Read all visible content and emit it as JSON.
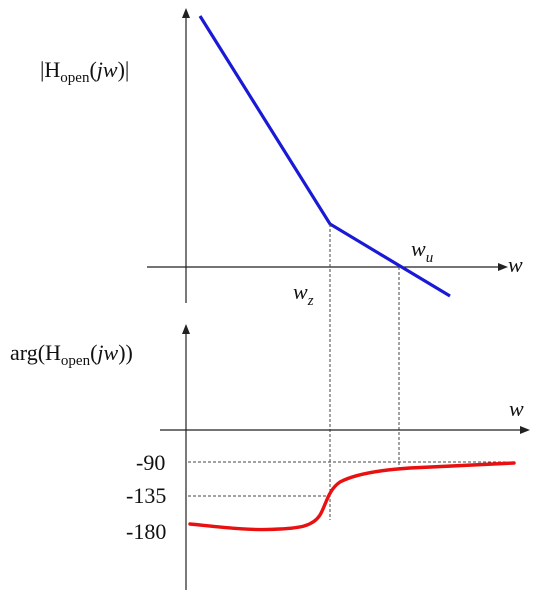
{
  "magnitude_plot": {
    "ylabel": {
      "prefix": "|H",
      "sub": "open",
      "open": "(",
      "var": "jw",
      "close": ")|"
    },
    "xlabel": "w",
    "wz_label": {
      "base": "w",
      "sub": "z"
    },
    "wu_label": {
      "base": "w",
      "sub": "u"
    }
  },
  "phase_plot": {
    "ylabel": {
      "prefix": "arg(H",
      "sub": "open",
      "open": "(",
      "var": "jw",
      "close": "))"
    },
    "xlabel": "w",
    "ticks": [
      "-90",
      "-135",
      "-180"
    ]
  },
  "colors": {
    "magnitude": "#1a1ad6",
    "phase": "#e81010",
    "axis": "#222222",
    "guide": "#444444"
  },
  "chart_data": [
    {
      "type": "line",
      "title": "",
      "xlabel": "w",
      "ylabel": "|Hopen(jw)|",
      "series": [
        {
          "points": [
            [
              -1.0,
              4.2
            ],
            [
              2.0,
              0.65
            ],
            [
              4.0,
              -0.5
            ]
          ]
        }
      ]
    },
    {
      "type": "line",
      "title": "",
      "xlabel": "w",
      "ylabel": "arg(Hopen(jw))",
      "yticks": [
        -90,
        -135,
        -180
      ],
      "series": [
        {
          "points": [
            [
              0.0,
              -175
            ],
            [
              0.8,
              -177
            ],
            [
              1.6,
              -177
            ],
            [
              2.0,
              -172
            ],
            [
              2.2,
              -160
            ],
            [
              2.35,
              -140
            ],
            [
              2.6,
              -120
            ],
            [
              3.0,
              -110
            ],
            [
              3.5,
              -103
            ],
            [
              4.0,
              -99
            ],
            [
              4.8,
              -96
            ],
            [
              5.5,
              -94
            ],
            [
              6.5,
              -93
            ]
          ]
        }
      ]
    }
  ]
}
